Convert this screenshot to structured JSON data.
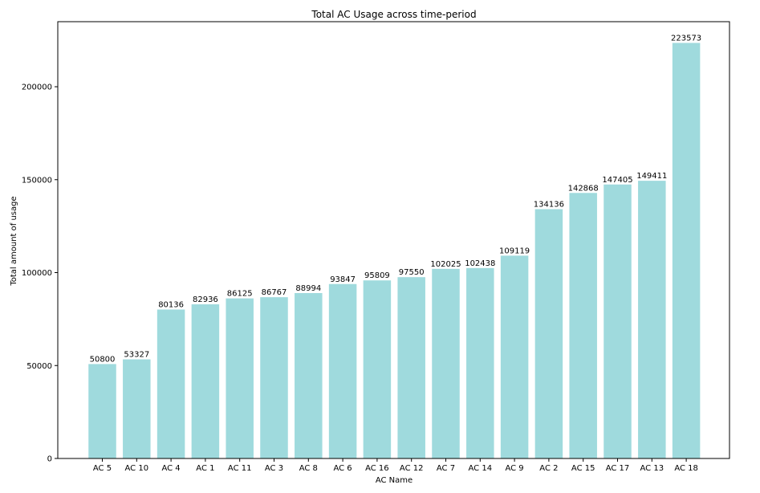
{
  "chart_data": {
    "type": "bar",
    "title": "Total AC Usage across time-period",
    "xlabel": "AC Name",
    "ylabel": "Total amount of usage",
    "categories": [
      "AC 5",
      "AC 10",
      "AC 4",
      "AC 1",
      "AC 11",
      "AC 3",
      "AC 8",
      "AC 6",
      "AC 16",
      "AC 12",
      "AC 7",
      "AC 14",
      "AC 9",
      "AC 2",
      "AC 15",
      "AC 17",
      "AC 13",
      "AC 18"
    ],
    "values": [
      50800,
      53327,
      80136,
      82936,
      86125,
      86767,
      88994,
      93847,
      95809,
      97550,
      102025,
      102438,
      109119,
      134136,
      142868,
      147405,
      149411,
      223573
    ],
    "yticks": [
      0,
      50000,
      100000,
      150000,
      200000
    ],
    "ylim": [
      0,
      235000
    ],
    "grid": false,
    "legend": "none",
    "bar_color": "#9fdadd"
  }
}
